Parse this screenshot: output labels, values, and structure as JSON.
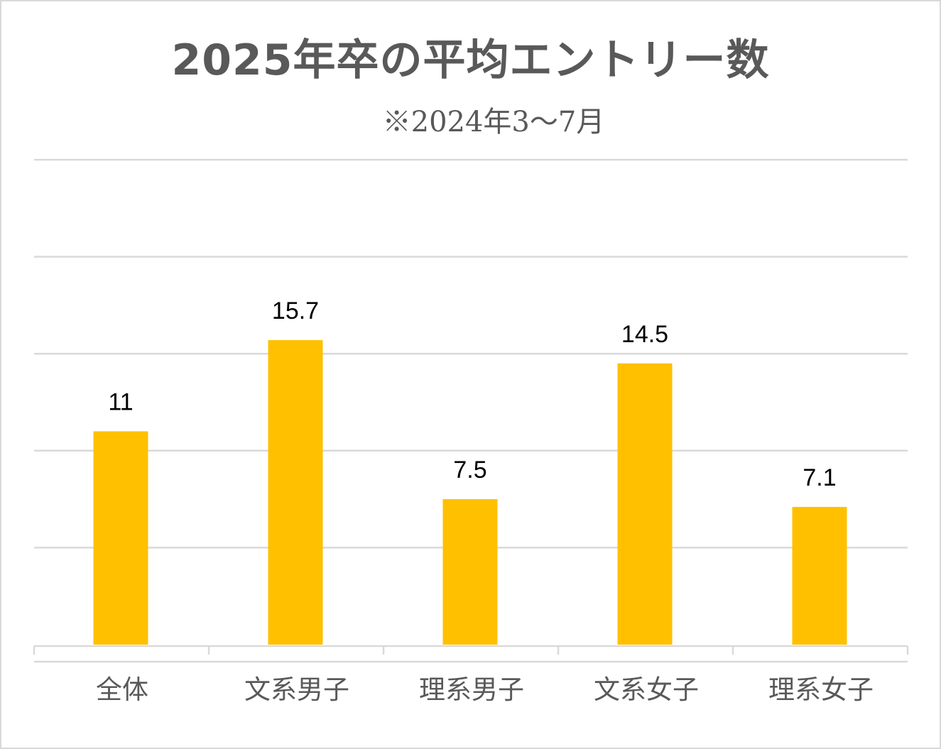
{
  "chart_data": {
    "type": "bar",
    "title": "2025年卒の平均エントリー数",
    "subtitle": "※2024年3～7月",
    "categories": [
      "全体",
      "文系男子",
      "理系男子",
      "文系女子",
      "理系女子"
    ],
    "values": [
      11,
      15.7,
      7.5,
      14.5,
      7.1
    ],
    "data_labels": [
      "11",
      "15.7",
      "7.5",
      "14.5",
      "7.1"
    ],
    "ylim": [
      0,
      25
    ],
    "grid": true,
    "legend": "none",
    "bar_color": "#FFC000",
    "grid_color": "#D9D9D9",
    "text_color": "#595959"
  }
}
